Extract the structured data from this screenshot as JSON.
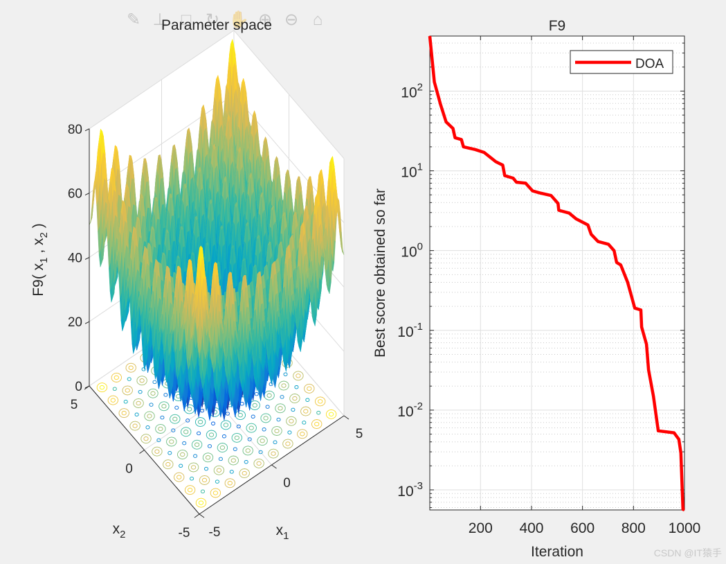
{
  "toolbar": {
    "icons": [
      "brush-icon",
      "data-tip-icon",
      "save-icon",
      "rotate-3d-icon",
      "pan-hand-icon",
      "zoom-in-icon",
      "zoom-out-icon",
      "home-icon"
    ]
  },
  "watermark": "CSDN @IT猿手",
  "chart_data": [
    {
      "type": "surface",
      "title": "Parameter space",
      "function": "F9",
      "xlabel": "x",
      "xlabel_sub": "1",
      "ylabel": "x",
      "ylabel_sub": "2",
      "zlabel_prefix": "F9( x",
      "zlabel_mid": " , x",
      "zlabel_suffix": " )",
      "zlabel_sub1": "1",
      "zlabel_sub2": "2",
      "xlim": [
        -5,
        5
      ],
      "ylim": [
        -5,
        5
      ],
      "zlim": [
        0,
        80
      ],
      "xticks": [
        "-5",
        "0",
        "5"
      ],
      "yticks": [
        "-5",
        "0",
        "5"
      ],
      "zticks": [
        "0",
        "20",
        "40",
        "60",
        "80"
      ],
      "colormap": "parula",
      "floor_contours": true,
      "grid": true
    },
    {
      "type": "line",
      "title": "F9",
      "xlabel": "Iteration",
      "ylabel": "Best score obtained so far",
      "xlim": [
        1,
        1000
      ],
      "ylim": [
        0.00056,
        490
      ],
      "yscale": "log",
      "xticks": [
        "200",
        "400",
        "600",
        "800",
        "1000"
      ],
      "yticks": [
        {
          "base": "10",
          "exp": "-3"
        },
        {
          "base": "10",
          "exp": "-2"
        },
        {
          "base": "10",
          "exp": "-1"
        },
        {
          "base": "10",
          "exp": "0"
        },
        {
          "base": "10",
          "exp": "1"
        },
        {
          "base": "10",
          "exp": "2"
        }
      ],
      "grid": true,
      "legend_placement": "top-right",
      "series": [
        {
          "name": "DOA",
          "color": "#ff0000",
          "x": [
            1,
            19,
            43,
            65,
            92,
            100,
            125,
            133,
            179,
            214,
            260,
            287,
            295,
            328,
            341,
            377,
            404,
            431,
            477,
            504,
            507,
            548,
            575,
            621,
            634,
            661,
            702,
            724,
            734,
            750,
            777,
            805,
            829,
            832,
            851,
            859,
            878,
            897,
            959,
            978,
            986,
            994,
            1000
          ],
          "y": [
            490,
            130,
            68,
            41,
            34,
            26,
            24.7,
            20,
            18.5,
            17,
            13,
            11.8,
            8.7,
            8.1,
            7.2,
            7.0,
            5.6,
            5.3,
            4.9,
            3.9,
            3.2,
            2.95,
            2.5,
            2.1,
            1.6,
            1.3,
            1.2,
            1.0,
            0.71,
            0.66,
            0.4,
            0.19,
            0.18,
            0.11,
            0.067,
            0.032,
            0.015,
            0.0055,
            0.0052,
            0.0043,
            0.0029,
            0.00057,
            0.00056
          ]
        }
      ]
    }
  ]
}
